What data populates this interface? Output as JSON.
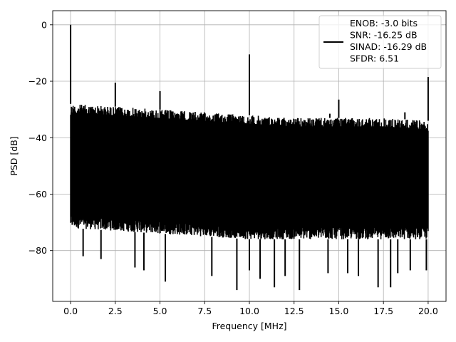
{
  "chart_data": {
    "type": "line",
    "title": "",
    "xlabel": "Frequency [MHz]",
    "ylabel": "PSD [dB]",
    "xlim": [
      -1.0,
      21.0
    ],
    "ylim": [
      -98,
      5
    ],
    "xticks": [
      0.0,
      2.5,
      5.0,
      7.5,
      10.0,
      12.5,
      15.0,
      17.5,
      20.0
    ],
    "xtick_labels": [
      "0.0",
      "2.5",
      "5.0",
      "7.5",
      "10.0",
      "12.5",
      "15.0",
      "17.5",
      "20.0"
    ],
    "yticks": [
      0,
      -20,
      -40,
      -60,
      -80
    ],
    "ytick_labels": [
      "0",
      "−20",
      "−40",
      "−60",
      "−80"
    ],
    "grid": true,
    "legend_position": "top-right",
    "series": [
      {
        "name": "",
        "color": "#000000",
        "noise_band": {
          "x_range": [
            0.0,
            20.0
          ],
          "upper_envelope": [
            [
              0.0,
              -28
            ],
            [
              2.5,
              -29
            ],
            [
              5.0,
              -30
            ],
            [
              7.5,
              -31
            ],
            [
              10.0,
              -32
            ],
            [
              12.5,
              -33
            ],
            [
              15.0,
              -33
            ],
            [
              17.5,
              -33
            ],
            [
              20.0,
              -34
            ]
          ],
          "lower_envelope": [
            [
              0.0,
              -72
            ],
            [
              2.5,
              -73
            ],
            [
              5.0,
              -74
            ],
            [
              7.5,
              -75
            ],
            [
              10.0,
              -76
            ],
            [
              12.5,
              -76
            ],
            [
              15.0,
              -76
            ],
            [
              17.5,
              -76
            ],
            [
              20.0,
              -76
            ]
          ]
        },
        "spurs": [
          {
            "x": 0.0,
            "y": 0.0
          },
          {
            "x": 2.5,
            "y": -20.5
          },
          {
            "x": 5.0,
            "y": -23.5
          },
          {
            "x": 10.0,
            "y": -10.5
          },
          {
            "x": 15.0,
            "y": -26.5
          },
          {
            "x": 14.5,
            "y": -31.5
          },
          {
            "x": 18.7,
            "y": -31.0
          },
          {
            "x": 20.0,
            "y": -18.5
          }
        ],
        "deep_nulls": [
          {
            "x": 0.7,
            "y": -82
          },
          {
            "x": 1.7,
            "y": -83
          },
          {
            "x": 3.6,
            "y": -86
          },
          {
            "x": 4.1,
            "y": -87
          },
          {
            "x": 5.3,
            "y": -91
          },
          {
            "x": 7.9,
            "y": -89
          },
          {
            "x": 9.3,
            "y": -94
          },
          {
            "x": 10.0,
            "y": -87
          },
          {
            "x": 10.6,
            "y": -90
          },
          {
            "x": 11.4,
            "y": -93
          },
          {
            "x": 12.0,
            "y": -89
          },
          {
            "x": 12.8,
            "y": -94
          },
          {
            "x": 14.4,
            "y": -88
          },
          {
            "x": 15.5,
            "y": -88
          },
          {
            "x": 16.1,
            "y": -89
          },
          {
            "x": 17.2,
            "y": -93
          },
          {
            "x": 17.9,
            "y": -93
          },
          {
            "x": 18.3,
            "y": -88
          },
          {
            "x": 19.0,
            "y": -87
          },
          {
            "x": 19.9,
            "y": -87
          }
        ]
      }
    ],
    "legend_lines": [
      "ENOB: -3.0 bits",
      "SNR: -16.25 dB",
      "SINAD: -16.29 dB",
      "SFDR: 6.51"
    ]
  }
}
